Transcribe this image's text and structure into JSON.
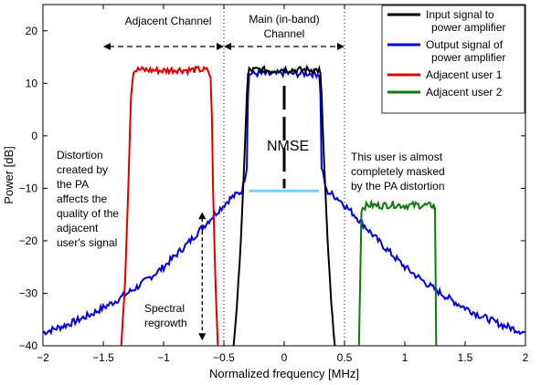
{
  "chart_data": {
    "type": "line",
    "xlabel": "Normalized frequency [MHz]",
    "ylabel": "Power [dB]",
    "xlim": [
      -2,
      2
    ],
    "ylim": [
      -40,
      25
    ],
    "x_ticks": [
      -2,
      -1.5,
      -1,
      -0.5,
      0,
      0.5,
      1,
      1.5,
      2
    ],
    "x_tick_labels": [
      "−2",
      "−1.5",
      "−1",
      "−0.5",
      "0",
      "0.5",
      "1",
      "1.5",
      "2"
    ],
    "y_ticks": [
      -40,
      -30,
      -20,
      -10,
      0,
      10,
      20
    ],
    "y_tick_labels": [
      "−40",
      "−30",
      "−20",
      "−10",
      "0",
      "10",
      "20"
    ],
    "grid": false,
    "legend_position": "top-right",
    "series": [
      {
        "name": "Input signal to power amplifier",
        "color": "#000000",
        "x": [
          -0.42,
          -0.39,
          -0.36,
          -0.33,
          -0.31,
          -0.3,
          -0.29,
          -0.2,
          -0.1,
          0,
          0.1,
          0.2,
          0.29,
          0.3,
          0.31,
          0.33,
          0.36,
          0.39,
          0.42
        ],
        "y": [
          -40,
          -32,
          -20,
          -5,
          8,
          11.5,
          12.5,
          12.6,
          12.4,
          12.7,
          12.5,
          12.6,
          12.5,
          11.5,
          8,
          -5,
          -20,
          -32,
          -40
        ]
      },
      {
        "name": "Output signal of power amplifier",
        "color": "#0000dd",
        "x": [
          -2,
          -1.8,
          -1.6,
          -1.4,
          -1.2,
          -1.0,
          -0.8,
          -0.6,
          -0.45,
          -0.35,
          -0.31,
          -0.3,
          -0.29,
          -0.2,
          -0.1,
          0,
          0.1,
          0.2,
          0.29,
          0.3,
          0.31,
          0.35,
          0.45,
          0.6,
          0.8,
          1.0,
          1.2,
          1.4,
          1.6,
          1.8,
          2
        ],
        "y": [
          -37.5,
          -36,
          -34,
          -31.5,
          -28.5,
          -25,
          -20.5,
          -15.5,
          -12,
          -10.5,
          -6,
          8,
          11.8,
          11.9,
          11.7,
          12,
          11.8,
          11.9,
          11.8,
          8,
          -6,
          -10.5,
          -12,
          -15.5,
          -20.5,
          -25,
          -28.5,
          -31.5,
          -34,
          -36,
          -37.5
        ]
      },
      {
        "name": "Adjacent user 1",
        "color": "#dd0000",
        "x": [
          -1.35,
          -1.32,
          -1.29,
          -1.27,
          -1.25,
          -1.2,
          -1.1,
          -1.0,
          -0.9,
          -0.8,
          -0.7,
          -0.63,
          -0.61,
          -0.6,
          -0.59,
          -0.57,
          -0.55
        ],
        "y": [
          -40,
          -28,
          -8,
          8,
          12.4,
          12.6,
          12.5,
          12.4,
          12.6,
          12.5,
          12.6,
          12.4,
          11,
          4,
          -10,
          -28,
          -40
        ]
      },
      {
        "name": "Adjacent user 2",
        "color": "#117711",
        "x": [
          0.62,
          0.64,
          0.66,
          0.7,
          0.8,
          0.9,
          1.0,
          1.1,
          1.2,
          1.24,
          1.25,
          1.26
        ],
        "y": [
          -40,
          -14,
          -13.5,
          -13.2,
          -13.3,
          -13.1,
          -13.3,
          -13.2,
          -13.3,
          -13.2,
          -14,
          -40
        ]
      }
    ],
    "annotations": {
      "adjacent_channel": "Adjacent Channel",
      "main_channel_line1": "Main (in-band)",
      "main_channel_line2": "Channel",
      "nmse": "NMSE",
      "distortion_lines": [
        "Distortion",
        "created by",
        "the PA",
        "affects the",
        "quality of the",
        "adjacent",
        "user's signal"
      ],
      "masked_lines": [
        "This user is almost",
        "completely masked",
        "by the PA distortion"
      ],
      "regrowth_lines": [
        "Spectral",
        "regrowth"
      ]
    },
    "legend_entries": [
      {
        "label_lines": [
          "Input signal to",
          "power amplifier"
        ],
        "color": "#000000"
      },
      {
        "label_lines": [
          "Output signal of",
          "power amplifier"
        ],
        "color": "#0000dd"
      },
      {
        "label_lines": [
          "Adjacent user 1"
        ],
        "color": "#dd0000"
      },
      {
        "label_lines": [
          "Adjacent user 2"
        ],
        "color": "#117711"
      }
    ]
  }
}
